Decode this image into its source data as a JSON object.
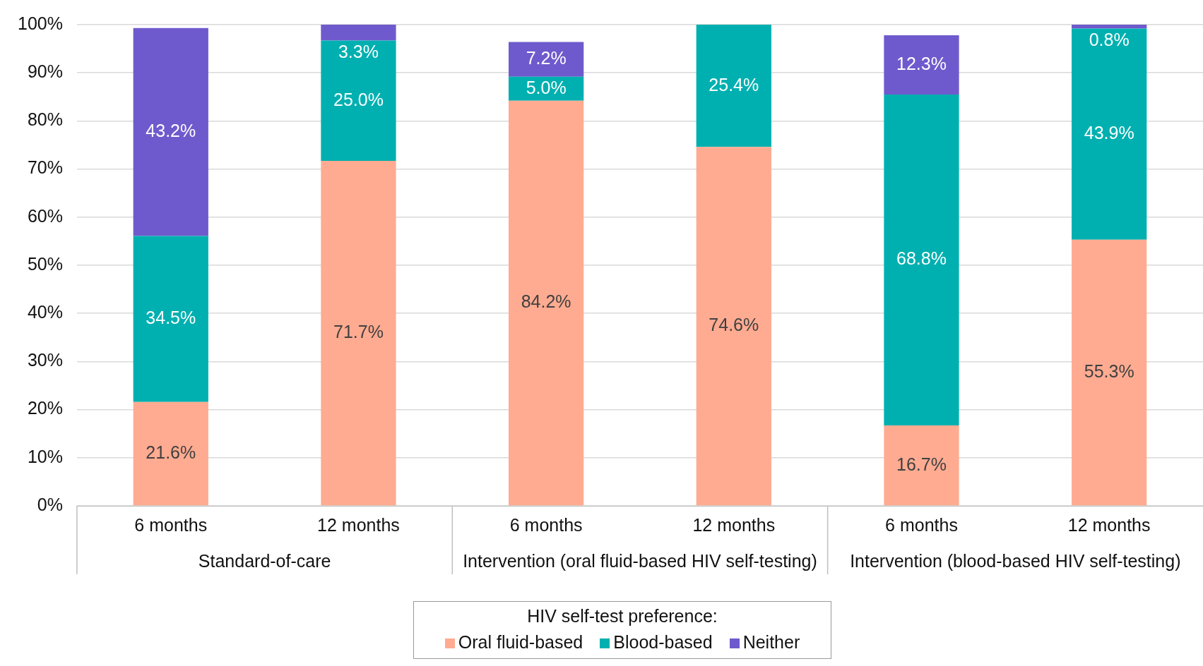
{
  "chart_data": {
    "type": "bar",
    "stacked": true,
    "categories": [
      "6 months",
      "12 months",
      "6 months",
      "12 months",
      "6 months",
      "12 months"
    ],
    "series": [
      {
        "name": "Oral fluid-based",
        "color": "#ffab91",
        "values": [
          21.6,
          71.7,
          84.2,
          74.6,
          16.7,
          55.3
        ],
        "value_labels": [
          "21.6%",
          "71.7%",
          "84.2%",
          "74.6%",
          "16.7%",
          "55.3%"
        ]
      },
      {
        "name": "Blood-based",
        "color": "#00b0b0",
        "values": [
          34.5,
          25.0,
          5.0,
          25.4,
          68.8,
          43.9
        ],
        "value_labels": [
          "34.5%",
          "25.0%",
          "5.0%",
          "25.4%",
          "68.8%",
          "43.9%"
        ]
      },
      {
        "name": "Neither",
        "color": "#6f5acd",
        "values": [
          43.2,
          3.3,
          7.2,
          null,
          12.3,
          0.8
        ],
        "value_labels": [
          "43.2%",
          "3.3%",
          "7.2%",
          null,
          "12.3%",
          "0.8%"
        ]
      }
    ],
    "annotations": [
      "Standard-of-care",
      "Intervention (oral fluid-based HIV self-testing)",
      "Intervention (blood-based HIV self-testing)"
    ],
    "ylim": [
      0,
      100
    ],
    "yticks": [
      {
        "value": 0,
        "label": "0%"
      },
      {
        "value": 10,
        "label": "10%"
      },
      {
        "value": 20,
        "label": "20%"
      },
      {
        "value": 30,
        "label": "30%"
      },
      {
        "value": 40,
        "label": "40%"
      },
      {
        "value": 50,
        "label": "50%"
      },
      {
        "value": 60,
        "label": "60%"
      },
      {
        "value": 70,
        "label": "70%"
      },
      {
        "value": 80,
        "label": "80%"
      },
      {
        "value": 90,
        "label": "90%"
      },
      {
        "value": 100,
        "label": "100%"
      }
    ],
    "grid": "y",
    "legend": "bottom",
    "legend_title": "HIV self-test preference:"
  }
}
